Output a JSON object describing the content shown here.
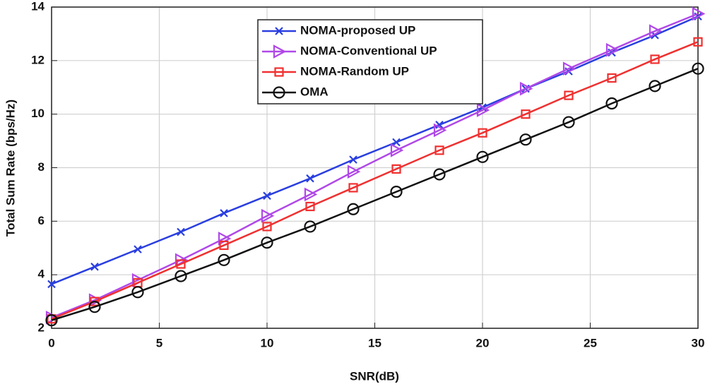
{
  "chart_data": {
    "type": "line",
    "xlabel": "SNR(dB)",
    "ylabel": "Total Sum Rate (bps/Hz)",
    "x": [
      0,
      2,
      4,
      6,
      8,
      10,
      12,
      14,
      16,
      18,
      20,
      22,
      24,
      26,
      28,
      30
    ],
    "xlim": [
      0,
      30
    ],
    "xticks": [
      0,
      5,
      10,
      15,
      20,
      25,
      30
    ],
    "ylim": [
      2,
      14
    ],
    "yticks": [
      2,
      4,
      6,
      8,
      10,
      12,
      14
    ],
    "grid": true,
    "legend": "top-center",
    "series": [
      {
        "name": "NOMA-proposed UP",
        "color": "#2a3fe0",
        "marker": "x",
        "values": [
          3.65,
          4.3,
          4.95,
          5.6,
          6.3,
          6.95,
          7.6,
          8.3,
          8.95,
          9.6,
          10.25,
          10.95,
          11.6,
          12.3,
          12.95,
          13.65
        ]
      },
      {
        "name": "NOMA-Conventional UP",
        "color": "#b048e8",
        "marker": "triangle-right",
        "values": [
          2.4,
          3.05,
          3.8,
          4.55,
          5.35,
          6.2,
          7.0,
          7.85,
          8.65,
          9.4,
          10.15,
          10.95,
          11.7,
          12.4,
          13.1,
          13.75
        ]
      },
      {
        "name": "NOMA-Random UP",
        "color": "#f03030",
        "marker": "square",
        "values": [
          2.35,
          3.0,
          3.7,
          4.4,
          5.1,
          5.8,
          6.55,
          7.25,
          7.95,
          8.65,
          9.3,
          10.0,
          10.7,
          11.35,
          12.05,
          12.7
        ]
      },
      {
        "name": "OMA",
        "color": "#111111",
        "marker": "circle",
        "values": [
          2.3,
          2.8,
          3.35,
          3.95,
          4.55,
          5.2,
          5.8,
          6.45,
          7.1,
          7.75,
          8.4,
          9.05,
          9.7,
          10.4,
          11.05,
          11.7
        ]
      }
    ]
  }
}
